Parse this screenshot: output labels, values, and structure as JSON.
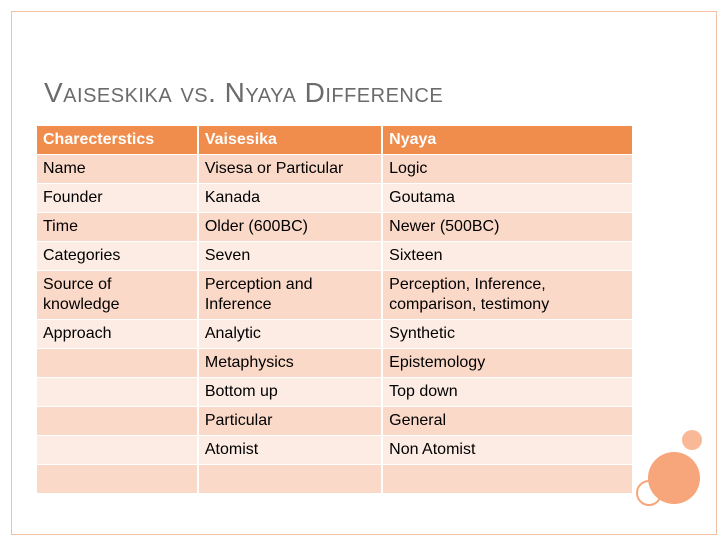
{
  "title": "Vaiseskika vs. Nyaya Difference",
  "table": {
    "headers": [
      "Charecterstics",
      "Vaisesika",
      "Nyaya"
    ],
    "rows": [
      [
        "Name",
        "Visesa or Particular",
        "Logic"
      ],
      [
        "Founder",
        "Kanada",
        "Goutama"
      ],
      [
        "Time",
        "Older (600BC)",
        "Newer (500BC)"
      ],
      [
        "Categories",
        "Seven",
        "Sixteen"
      ],
      [
        "Source of knowledge",
        "Perception and Inference",
        "Perception, Inference, comparison, testimony"
      ],
      [
        "Approach",
        "Analytic",
        "Synthetic"
      ],
      [
        "",
        "Metaphysics",
        "Epistemology"
      ],
      [
        "",
        "Bottom up",
        "Top down"
      ],
      [
        "",
        "Particular",
        "General"
      ],
      [
        "",
        "Atomist",
        "Non Atomist"
      ],
      [
        "",
        "",
        ""
      ]
    ]
  },
  "colors": {
    "header_bg": "#f08c4c",
    "row_dark": "#fbd9c9",
    "row_light": "#fdece4",
    "accent": "#f7a57a"
  }
}
